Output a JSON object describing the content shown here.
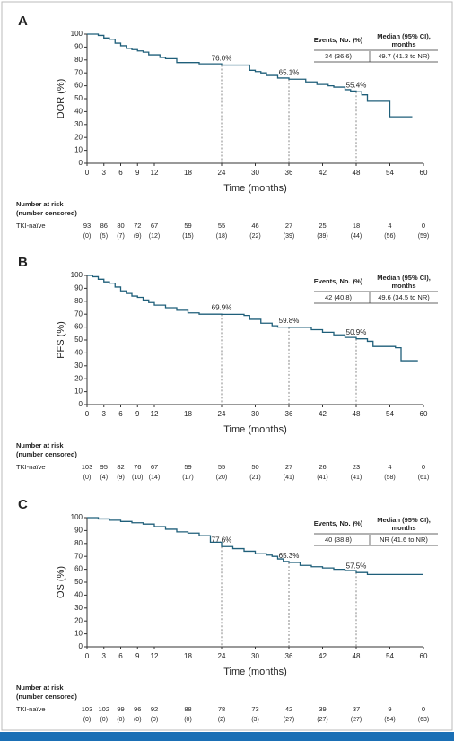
{
  "chart_data": [
    {
      "type": "line",
      "step": true,
      "panel": "A",
      "ylabel": "DOR (%)",
      "xlabel": "Time (months)",
      "xlim": [
        0,
        60
      ],
      "xticks": [
        0,
        3,
        6,
        9,
        12,
        18,
        24,
        30,
        36,
        42,
        48,
        54,
        60
      ],
      "ylim": [
        0,
        100
      ],
      "yticks": [
        0,
        10,
        20,
        30,
        40,
        50,
        60,
        70,
        80,
        90,
        100
      ],
      "series": [
        {
          "color": "#1f5f7a",
          "x": [
            0,
            1,
            2,
            3,
            4,
            5,
            6,
            7,
            8,
            9,
            10,
            11,
            13,
            14,
            16,
            20,
            24,
            29,
            30,
            31,
            32,
            34,
            36,
            39,
            41,
            43,
            44,
            46,
            47,
            48,
            49,
            50,
            54,
            58
          ],
          "values": [
            100,
            100,
            99,
            97,
            96,
            93,
            91,
            89,
            88,
            87,
            86,
            84,
            82,
            81,
            78,
            77,
            76,
            72,
            71,
            70,
            68,
            66,
            65.1,
            63,
            61,
            60,
            59,
            57,
            56,
            55.4,
            53,
            48,
            36,
            36
          ]
        }
      ],
      "annotations": [
        {
          "text": "76.0%",
          "x": 24,
          "y": 76
        },
        {
          "text": "65.1%",
          "x": 36,
          "y": 65.1
        },
        {
          "text": "55.4%",
          "x": 48,
          "y": 55.4
        }
      ],
      "events_table": {
        "headers": [
          "Events, No. (%)",
          "Median (95% CI), months"
        ],
        "row": [
          "34 (36.6)",
          "49.7 (41.3 to NR)"
        ]
      },
      "risk_table": {
        "title": "Number at risk",
        "subtitle": "(number censored)",
        "row_label": "TKI-naïve",
        "at_risk": [
          93,
          86,
          80,
          72,
          67,
          59,
          55,
          46,
          27,
          25,
          18,
          4,
          0
        ],
        "censored": [
          "(0)",
          "(5)",
          "(7)",
          "(9)",
          "(12)",
          "(15)",
          "(18)",
          "(22)",
          "(39)",
          "(39)",
          "(44)",
          "(56)",
          "(59)"
        ]
      }
    },
    {
      "type": "line",
      "step": true,
      "panel": "B",
      "ylabel": "PFS (%)",
      "xlabel": "Time (months)",
      "xlim": [
        0,
        60
      ],
      "xticks": [
        0,
        3,
        6,
        9,
        12,
        18,
        24,
        30,
        36,
        42,
        48,
        54,
        60
      ],
      "ylim": [
        0,
        100
      ],
      "yticks": [
        0,
        10,
        20,
        30,
        40,
        50,
        60,
        70,
        80,
        90,
        100
      ],
      "series": [
        {
          "color": "#1f5f7a",
          "x": [
            0,
            1,
            2,
            3,
            4,
            5,
            6,
            7,
            8,
            9,
            10,
            11,
            12,
            14,
            16,
            18,
            20,
            24,
            28,
            29,
            31,
            33,
            34,
            36,
            40,
            42,
            44,
            46,
            48,
            50,
            51,
            55,
            56,
            59
          ],
          "values": [
            100,
            99,
            97,
            95,
            94,
            91,
            88,
            86,
            84,
            83,
            81,
            79,
            77,
            75,
            73,
            71,
            70,
            69.9,
            69,
            66,
            63,
            61,
            60,
            59.8,
            58,
            56,
            54,
            52,
            50.9,
            49,
            45,
            44,
            34,
            34
          ]
        }
      ],
      "annotations": [
        {
          "text": "69.9%",
          "x": 24,
          "y": 69.9
        },
        {
          "text": "59.8%",
          "x": 36,
          "y": 59.8
        },
        {
          "text": "50.9%",
          "x": 48,
          "y": 50.9
        }
      ],
      "events_table": {
        "headers": [
          "Events, No. (%)",
          "Median (95% CI), months"
        ],
        "row": [
          "42 (40.8)",
          "49.6 (34.5 to NR)"
        ]
      },
      "risk_table": {
        "title": "Number at risk",
        "subtitle": "(number censored)",
        "row_label": "TKI-naïve",
        "at_risk": [
          103,
          95,
          82,
          76,
          67,
          59,
          55,
          50,
          27,
          26,
          23,
          4,
          0
        ],
        "censored": [
          "(0)",
          "(4)",
          "(9)",
          "(10)",
          "(14)",
          "(17)",
          "(20)",
          "(21)",
          "(41)",
          "(41)",
          "(41)",
          "(58)",
          "(61)"
        ]
      }
    },
    {
      "type": "line",
      "step": true,
      "panel": "C",
      "ylabel": "OS (%)",
      "xlabel": "Time (months)",
      "xlim": [
        0,
        60
      ],
      "xticks": [
        0,
        3,
        6,
        9,
        12,
        18,
        24,
        30,
        36,
        42,
        48,
        54,
        60
      ],
      "ylim": [
        0,
        100
      ],
      "yticks": [
        0,
        10,
        20,
        30,
        40,
        50,
        60,
        70,
        80,
        90,
        100
      ],
      "series": [
        {
          "color": "#1f5f7a",
          "x": [
            0,
            2,
            4,
            6,
            8,
            10,
            12,
            14,
            16,
            18,
            20,
            22,
            24,
            26,
            28,
            30,
            32,
            33,
            34,
            35,
            36,
            38,
            40,
            42,
            44,
            46,
            48,
            50,
            60
          ],
          "values": [
            100,
            99,
            98,
            97,
            96,
            95,
            93,
            91,
            89,
            88,
            86,
            81,
            77.6,
            76,
            74,
            72,
            71,
            70,
            68,
            66,
            65.3,
            63,
            62,
            61,
            60,
            59,
            57.5,
            56,
            56
          ]
        }
      ],
      "annotations": [
        {
          "text": "77.6%",
          "x": 24,
          "y": 77.6
        },
        {
          "text": "65.3%",
          "x": 36,
          "y": 65.3
        },
        {
          "text": "57.5%",
          "x": 48,
          "y": 57.5
        }
      ],
      "events_table": {
        "headers": [
          "Events, No. (%)",
          "Median (95% CI), months"
        ],
        "row": [
          "40 (38.8)",
          "NR (41.6 to NR)"
        ]
      },
      "risk_table": {
        "title": "Number at risk",
        "subtitle": "(number censored)",
        "row_label": "TKI-naïve",
        "at_risk": [
          103,
          102,
          99,
          96,
          92,
          88,
          78,
          73,
          42,
          39,
          37,
          9,
          0
        ],
        "censored": [
          "(0)",
          "(0)",
          "(0)",
          "(0)",
          "(0)",
          "(0)",
          "(2)",
          "(3)",
          "(27)",
          "(27)",
          "(27)",
          "(54)",
          "(63)"
        ]
      }
    }
  ]
}
